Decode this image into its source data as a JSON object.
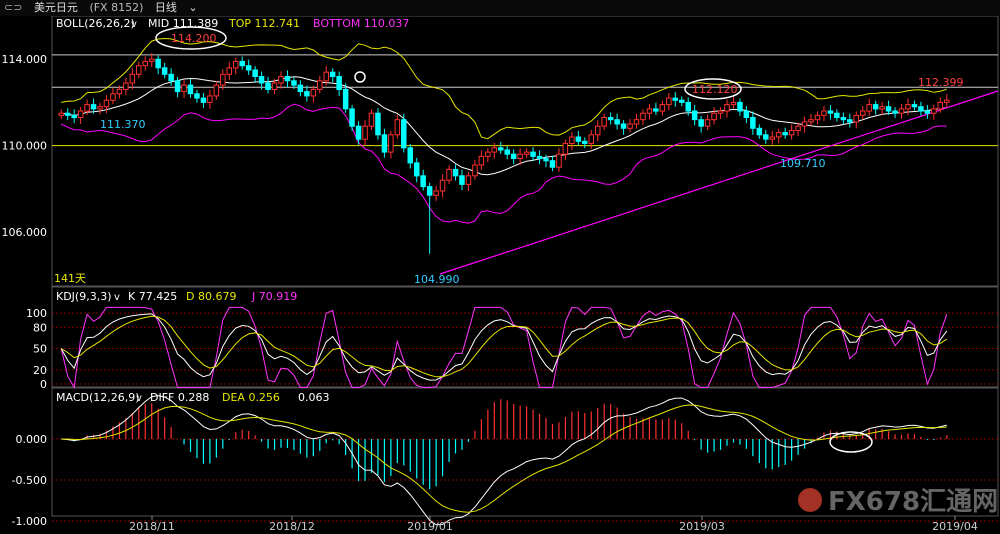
{
  "header": {
    "icon": "link-icon",
    "instrument": "美元日元",
    "code": "(FX 8152)",
    "period": "日线",
    "period_icon": "chevron-down-icon"
  },
  "panels": {
    "boll": {
      "label": "BOLL(26,26,2)",
      "chevron": "v",
      "mid": "MID 111.389",
      "top": "TOP 112.741",
      "bottom": "BOTTOM 110.037",
      "colors": {
        "label": "#ffffff",
        "mid": "#ffffff",
        "top": "#e6e600",
        "bottom": "#ff00ff"
      }
    },
    "kdj": {
      "label": "KDJ(9,3,3)",
      "chevron": "v",
      "k": "K 77.425",
      "d": "D 80.679",
      "j": "J 70.919",
      "colors": {
        "k": "#ffffff",
        "d": "#e6e600",
        "j": "#ff33ff"
      }
    },
    "macd": {
      "label": "MACD(12,26,9)",
      "chevron": "v",
      "diff": "DIFF 0.288",
      "dea": "DEA 0.256",
      "hist": "0.063"
    }
  },
  "annotations": {
    "high_label": "114.200",
    "low_label": "111.370",
    "bottom_label": "104.990",
    "mid_high_label": "112.120",
    "right_high_label": "112.399",
    "right_low_label": "109.710",
    "days_label": "141天"
  },
  "watermark": "FX678汇通网",
  "colors": {
    "up": "#ff3030",
    "down": "#00ffff",
    "bg": "#000000",
    "grid": "#8a0000",
    "trend": "#ff00ff"
  },
  "chart_data": {
    "type": "candlestick",
    "x_tick_labels": [
      "2018/11",
      "2018/12",
      "2019/01",
      "2019/03",
      "2019/04"
    ],
    "price_axis_ticks": [
      "114.000",
      "110.000",
      "106.000"
    ],
    "kdj_axis_ticks": [
      "100",
      "80",
      "50",
      "20",
      "0"
    ],
    "macd_axis_ticks": [
      "0.000",
      "-0.500",
      "-1.000"
    ],
    "horizontal_levels": [
      114.2,
      112.7,
      110.0
    ],
    "boll": {
      "mid": 111.389,
      "top": 112.741,
      "bottom": 110.037
    },
    "kdj": {
      "k": 77.425,
      "d": 80.679,
      "j": 70.919
    },
    "macd": {
      "diff": 0.288,
      "dea": 0.256,
      "hist": 0.063
    },
    "closes": [
      111.5,
      111.4,
      111.3,
      111.6,
      111.9,
      111.7,
      111.8,
      112.1,
      112.4,
      112.6,
      112.9,
      113.3,
      113.7,
      113.9,
      114.0,
      113.6,
      113.3,
      113.0,
      112.5,
      112.8,
      112.4,
      112.2,
      112.0,
      112.3,
      112.8,
      113.3,
      113.6,
      113.9,
      113.7,
      113.5,
      113.2,
      112.9,
      112.6,
      112.9,
      113.2,
      113.0,
      112.8,
      112.5,
      112.3,
      112.6,
      113.0,
      113.4,
      113.2,
      112.6,
      111.7,
      110.9,
      110.3,
      110.9,
      111.5,
      110.5,
      109.7,
      110.5,
      111.2,
      109.9,
      109.2,
      108.6,
      108.1,
      107.7,
      107.9,
      108.4,
      108.9,
      108.6,
      108.2,
      108.6,
      109.1,
      109.5,
      109.7,
      109.9,
      109.8,
      109.6,
      109.4,
      109.6,
      109.7,
      109.5,
      109.4,
      109.3,
      109.0,
      109.6,
      110.1,
      110.4,
      110.2,
      110.1,
      110.5,
      110.9,
      111.3,
      111.2,
      111.0,
      110.8,
      111.0,
      111.2,
      111.5,
      111.7,
      111.6,
      111.9,
      112.2,
      112.1,
      112.0,
      111.6,
      111.2,
      110.9,
      111.2,
      111.5,
      111.6,
      111.9,
      112.0,
      111.6,
      111.3,
      110.8,
      110.5,
      110.3,
      110.4,
      110.6,
      110.5,
      110.7,
      110.9,
      111.1,
      111.2,
      111.4,
      111.6,
      111.5,
      111.3,
      111.2,
      111.1,
      111.4,
      111.6,
      111.9,
      111.7,
      111.8,
      111.6,
      111.5,
      111.7,
      111.9,
      111.8,
      111.6,
      111.5,
      111.7,
      112.0,
      112.1
    ]
  }
}
